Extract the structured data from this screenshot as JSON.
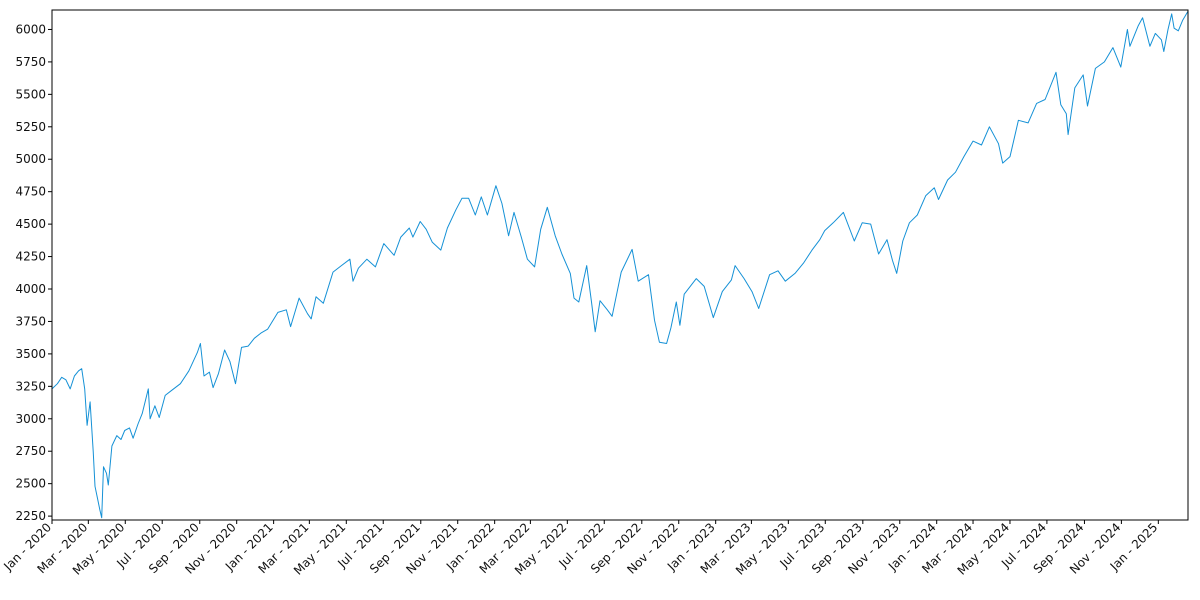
{
  "chart_data": {
    "type": "line",
    "title": "",
    "xlabel": "",
    "ylabel": "",
    "grid": false,
    "ylim": [
      2220,
      6150
    ],
    "xlim": [
      "2020-01-01",
      "2025-02-19"
    ],
    "y_ticks": [
      2250,
      2500,
      2750,
      3000,
      3250,
      3500,
      3750,
      4000,
      4250,
      4500,
      4750,
      5000,
      5250,
      5500,
      5750,
      6000
    ],
    "x_ticks": [
      {
        "date": "2020-01-01",
        "label": "Jan - 2020"
      },
      {
        "date": "2020-03-01",
        "label": "Mar - 2020"
      },
      {
        "date": "2020-05-01",
        "label": "May - 2020"
      },
      {
        "date": "2020-07-01",
        "label": "Jul - 2020"
      },
      {
        "date": "2020-09-01",
        "label": "Sep - 2020"
      },
      {
        "date": "2020-11-01",
        "label": "Nov - 2020"
      },
      {
        "date": "2021-01-01",
        "label": "Jan - 2021"
      },
      {
        "date": "2021-03-01",
        "label": "Mar - 2021"
      },
      {
        "date": "2021-05-01",
        "label": "May - 2021"
      },
      {
        "date": "2021-07-01",
        "label": "Jul - 2021"
      },
      {
        "date": "2021-09-01",
        "label": "Sep - 2021"
      },
      {
        "date": "2021-11-01",
        "label": "Nov - 2021"
      },
      {
        "date": "2022-01-01",
        "label": "Jan - 2022"
      },
      {
        "date": "2022-03-01",
        "label": "Mar - 2022"
      },
      {
        "date": "2022-05-01",
        "label": "May - 2022"
      },
      {
        "date": "2022-07-01",
        "label": "Jul - 2022"
      },
      {
        "date": "2022-09-01",
        "label": "Sep - 2022"
      },
      {
        "date": "2022-11-01",
        "label": "Nov - 2022"
      },
      {
        "date": "2023-01-01",
        "label": "Jan - 2023"
      },
      {
        "date": "2023-03-01",
        "label": "Mar - 2023"
      },
      {
        "date": "2023-05-01",
        "label": "May - 2023"
      },
      {
        "date": "2023-07-01",
        "label": "Jul - 2023"
      },
      {
        "date": "2023-09-01",
        "label": "Sep - 2023"
      },
      {
        "date": "2023-11-01",
        "label": "Nov - 2023"
      },
      {
        "date": "2024-01-01",
        "label": "Jan - 2024"
      },
      {
        "date": "2024-03-01",
        "label": "Mar - 2024"
      },
      {
        "date": "2024-05-01",
        "label": "May - 2024"
      },
      {
        "date": "2024-07-01",
        "label": "Jul - 2024"
      },
      {
        "date": "2024-09-01",
        "label": "Sep - 2024"
      },
      {
        "date": "2024-11-01",
        "label": "Nov - 2024"
      },
      {
        "date": "2025-01-01",
        "label": "Jan - 2025"
      }
    ],
    "series": [
      {
        "color": "#1591d6",
        "points": [
          [
            "2020-01-01",
            3230
          ],
          [
            "2020-01-10",
            3270
          ],
          [
            "2020-01-17",
            3320
          ],
          [
            "2020-01-24",
            3300
          ],
          [
            "2020-01-31",
            3230
          ],
          [
            "2020-02-07",
            3330
          ],
          [
            "2020-02-14",
            3370
          ],
          [
            "2020-02-19",
            3386
          ],
          [
            "2020-02-24",
            3230
          ],
          [
            "2020-02-28",
            2950
          ],
          [
            "2020-03-04",
            3130
          ],
          [
            "2020-03-09",
            2750
          ],
          [
            "2020-03-12",
            2480
          ],
          [
            "2020-03-16",
            2390
          ],
          [
            "2020-03-20",
            2300
          ],
          [
            "2020-03-23",
            2237
          ],
          [
            "2020-03-26",
            2630
          ],
          [
            "2020-03-31",
            2580
          ],
          [
            "2020-04-03",
            2490
          ],
          [
            "2020-04-09",
            2790
          ],
          [
            "2020-04-17",
            2870
          ],
          [
            "2020-04-24",
            2840
          ],
          [
            "2020-04-30",
            2910
          ],
          [
            "2020-05-08",
            2930
          ],
          [
            "2020-05-14",
            2850
          ],
          [
            "2020-05-22",
            2960
          ],
          [
            "2020-05-29",
            3040
          ],
          [
            "2020-06-08",
            3230
          ],
          [
            "2020-06-11",
            3000
          ],
          [
            "2020-06-19",
            3100
          ],
          [
            "2020-06-26",
            3010
          ],
          [
            "2020-07-06",
            3180
          ],
          [
            "2020-07-17",
            3220
          ],
          [
            "2020-07-31",
            3270
          ],
          [
            "2020-08-14",
            3370
          ],
          [
            "2020-08-28",
            3510
          ],
          [
            "2020-09-02",
            3580
          ],
          [
            "2020-09-08",
            3330
          ],
          [
            "2020-09-17",
            3360
          ],
          [
            "2020-09-23",
            3240
          ],
          [
            "2020-10-02",
            3350
          ],
          [
            "2020-10-12",
            3530
          ],
          [
            "2020-10-21",
            3440
          ],
          [
            "2020-10-30",
            3270
          ],
          [
            "2020-11-09",
            3550
          ],
          [
            "2020-11-20",
            3560
          ],
          [
            "2020-11-30",
            3620
          ],
          [
            "2020-12-11",
            3660
          ],
          [
            "2020-12-22",
            3690
          ],
          [
            "2021-01-08",
            3820
          ],
          [
            "2021-01-22",
            3840
          ],
          [
            "2021-01-29",
            3710
          ],
          [
            "2021-02-12",
            3930
          ],
          [
            "2021-02-26",
            3810
          ],
          [
            "2021-03-04",
            3770
          ],
          [
            "2021-03-12",
            3940
          ],
          [
            "2021-03-24",
            3890
          ],
          [
            "2021-04-09",
            4130
          ],
          [
            "2021-04-23",
            4180
          ],
          [
            "2021-05-07",
            4230
          ],
          [
            "2021-05-12",
            4060
          ],
          [
            "2021-05-21",
            4160
          ],
          [
            "2021-06-04",
            4230
          ],
          [
            "2021-06-18",
            4170
          ],
          [
            "2021-07-02",
            4350
          ],
          [
            "2021-07-19",
            4260
          ],
          [
            "2021-07-30",
            4400
          ],
          [
            "2021-08-13",
            4470
          ],
          [
            "2021-08-19",
            4400
          ],
          [
            "2021-08-31",
            4520
          ],
          [
            "2021-09-10",
            4460
          ],
          [
            "2021-09-20",
            4360
          ],
          [
            "2021-10-04",
            4300
          ],
          [
            "2021-10-15",
            4470
          ],
          [
            "2021-10-29",
            4610
          ],
          [
            "2021-11-08",
            4700
          ],
          [
            "2021-11-19",
            4700
          ],
          [
            "2021-11-30",
            4570
          ],
          [
            "2021-12-10",
            4710
          ],
          [
            "2021-12-20",
            4570
          ],
          [
            "2022-01-03",
            4796
          ],
          [
            "2022-01-13",
            4660
          ],
          [
            "2022-01-24",
            4410
          ],
          [
            "2022-02-02",
            4590
          ],
          [
            "2022-02-14",
            4400
          ],
          [
            "2022-02-24",
            4230
          ],
          [
            "2022-03-08",
            4170
          ],
          [
            "2022-03-18",
            4460
          ],
          [
            "2022-03-29",
            4630
          ],
          [
            "2022-04-11",
            4410
          ],
          [
            "2022-04-22",
            4270
          ],
          [
            "2022-05-06",
            4120
          ],
          [
            "2022-05-12",
            3930
          ],
          [
            "2022-05-20",
            3900
          ],
          [
            "2022-06-02",
            4180
          ],
          [
            "2022-06-10",
            3900
          ],
          [
            "2022-06-16",
            3670
          ],
          [
            "2022-06-24",
            3910
          ],
          [
            "2022-07-06",
            3840
          ],
          [
            "2022-07-14",
            3790
          ],
          [
            "2022-07-29",
            4130
          ],
          [
            "2022-08-16",
            4305
          ],
          [
            "2022-08-26",
            4060
          ],
          [
            "2022-09-12",
            4110
          ],
          [
            "2022-09-22",
            3760
          ],
          [
            "2022-09-30",
            3590
          ],
          [
            "2022-10-12",
            3580
          ],
          [
            "2022-10-19",
            3700
          ],
          [
            "2022-10-28",
            3900
          ],
          [
            "2022-11-03",
            3720
          ],
          [
            "2022-11-10",
            3960
          ],
          [
            "2022-11-30",
            4080
          ],
          [
            "2022-12-13",
            4020
          ],
          [
            "2022-12-28",
            3780
          ],
          [
            "2023-01-12",
            3980
          ],
          [
            "2023-01-27",
            4070
          ],
          [
            "2023-02-02",
            4180
          ],
          [
            "2023-02-17",
            4080
          ],
          [
            "2023-03-02",
            3980
          ],
          [
            "2023-03-13",
            3850
          ],
          [
            "2023-03-31",
            4110
          ],
          [
            "2023-04-14",
            4140
          ],
          [
            "2023-04-26",
            4060
          ],
          [
            "2023-05-12",
            4120
          ],
          [
            "2023-05-26",
            4200
          ],
          [
            "2023-06-09",
            4300
          ],
          [
            "2023-06-22",
            4380
          ],
          [
            "2023-06-30",
            4450
          ],
          [
            "2023-07-14",
            4510
          ],
          [
            "2023-07-31",
            4590
          ],
          [
            "2023-08-18",
            4370
          ],
          [
            "2023-08-31",
            4510
          ],
          [
            "2023-09-14",
            4500
          ],
          [
            "2023-09-27",
            4270
          ],
          [
            "2023-10-11",
            4380
          ],
          [
            "2023-10-20",
            4220
          ],
          [
            "2023-10-27",
            4120
          ],
          [
            "2023-11-06",
            4370
          ],
          [
            "2023-11-17",
            4510
          ],
          [
            "2023-11-30",
            4570
          ],
          [
            "2023-12-14",
            4720
          ],
          [
            "2023-12-28",
            4780
          ],
          [
            "2024-01-04",
            4690
          ],
          [
            "2024-01-19",
            4840
          ],
          [
            "2024-02-01",
            4900
          ],
          [
            "2024-02-15",
            5020
          ],
          [
            "2024-03-01",
            5140
          ],
          [
            "2024-03-15",
            5110
          ],
          [
            "2024-03-28",
            5250
          ],
          [
            "2024-04-12",
            5120
          ],
          [
            "2024-04-19",
            4970
          ],
          [
            "2024-05-01",
            5020
          ],
          [
            "2024-05-15",
            5300
          ],
          [
            "2024-05-31",
            5280
          ],
          [
            "2024-06-14",
            5430
          ],
          [
            "2024-06-28",
            5460
          ],
          [
            "2024-07-16",
            5670
          ],
          [
            "2024-07-24",
            5420
          ],
          [
            "2024-08-02",
            5350
          ],
          [
            "2024-08-05",
            5190
          ],
          [
            "2024-08-16",
            5550
          ],
          [
            "2024-08-30",
            5650
          ],
          [
            "2024-09-06",
            5410
          ],
          [
            "2024-09-19",
            5700
          ],
          [
            "2024-10-04",
            5750
          ],
          [
            "2024-10-18",
            5860
          ],
          [
            "2024-10-31",
            5710
          ],
          [
            "2024-11-11",
            6000
          ],
          [
            "2024-11-15",
            5870
          ],
          [
            "2024-11-29",
            6030
          ],
          [
            "2024-12-06",
            6090
          ],
          [
            "2024-12-18",
            5870
          ],
          [
            "2024-12-27",
            5970
          ],
          [
            "2025-01-06",
            5920
          ],
          [
            "2025-01-10",
            5830
          ],
          [
            "2025-01-17",
            6000
          ],
          [
            "2025-01-23",
            6120
          ],
          [
            "2025-01-27",
            6010
          ],
          [
            "2025-02-03",
            5990
          ],
          [
            "2025-02-10",
            6070
          ],
          [
            "2025-02-19",
            6140
          ]
        ]
      }
    ]
  }
}
